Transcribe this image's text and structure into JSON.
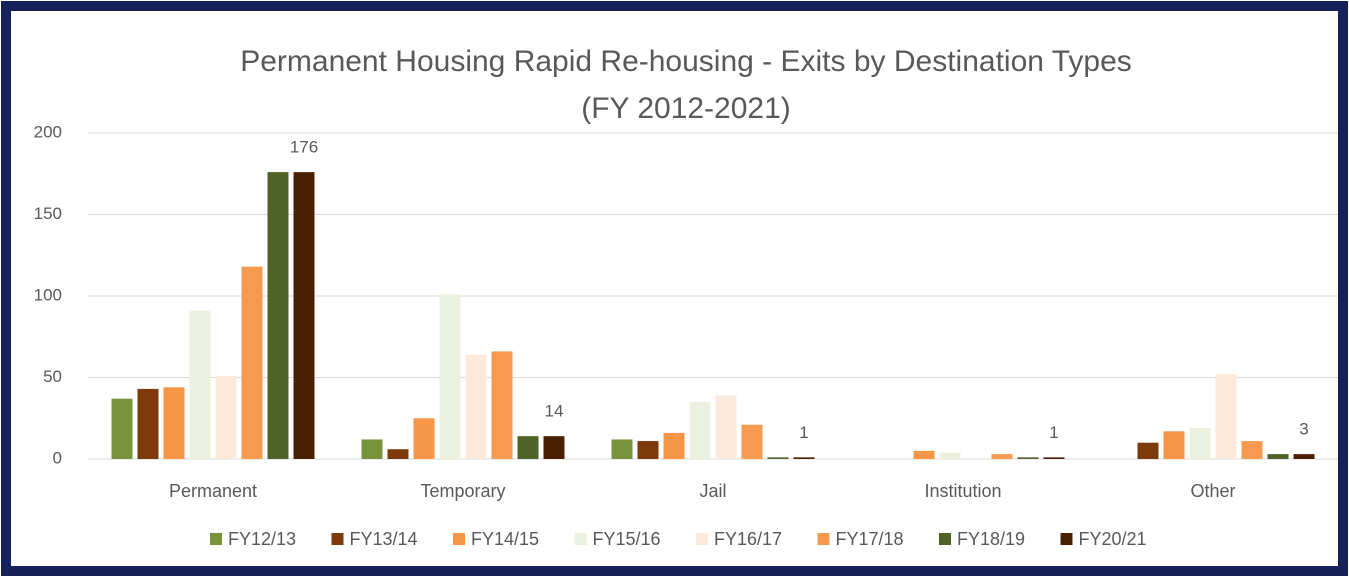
{
  "chart_data": {
    "type": "bar",
    "title": "Permanent Housing Rapid Re-housing - Exits by Destination Types",
    "subtitle": "(FY 2012-2021)",
    "categories": [
      "Permanent",
      "Temporary",
      "Jail",
      "Institution",
      "Other"
    ],
    "series": [
      {
        "name": "FY12/13",
        "color": "#77933c",
        "values": [
          37,
          12,
          12,
          0,
          0
        ]
      },
      {
        "name": "FY13/14",
        "color": "#7f3a0b",
        "values": [
          43,
          6,
          11,
          0,
          10
        ]
      },
      {
        "name": "FY14/15",
        "color": "#f79646",
        "values": [
          44,
          25,
          16,
          5,
          17
        ]
      },
      {
        "name": "FY15/16",
        "color": "#ebf1de",
        "values": [
          91,
          101,
          35,
          4,
          19
        ]
      },
      {
        "name": "FY16/17",
        "color": "#fde9d9",
        "values": [
          51,
          64,
          39,
          0,
          52
        ]
      },
      {
        "name": "FY17/18",
        "color": "#f69a50",
        "values": [
          118,
          66,
          21,
          3,
          11
        ]
      },
      {
        "name": "FY18/19",
        "color": "#4f6228",
        "values": [
          176,
          14,
          1,
          1,
          3
        ]
      },
      {
        "name": "FY20/21",
        "color": "#4a2100",
        "values": [
          176,
          14,
          1,
          1,
          3
        ],
        "show_values": true
      }
    ],
    "ylim": [
      0,
      200
    ],
    "yticks": [
      0,
      50,
      100,
      150,
      200
    ],
    "grid": true,
    "legend": "bottom"
  }
}
